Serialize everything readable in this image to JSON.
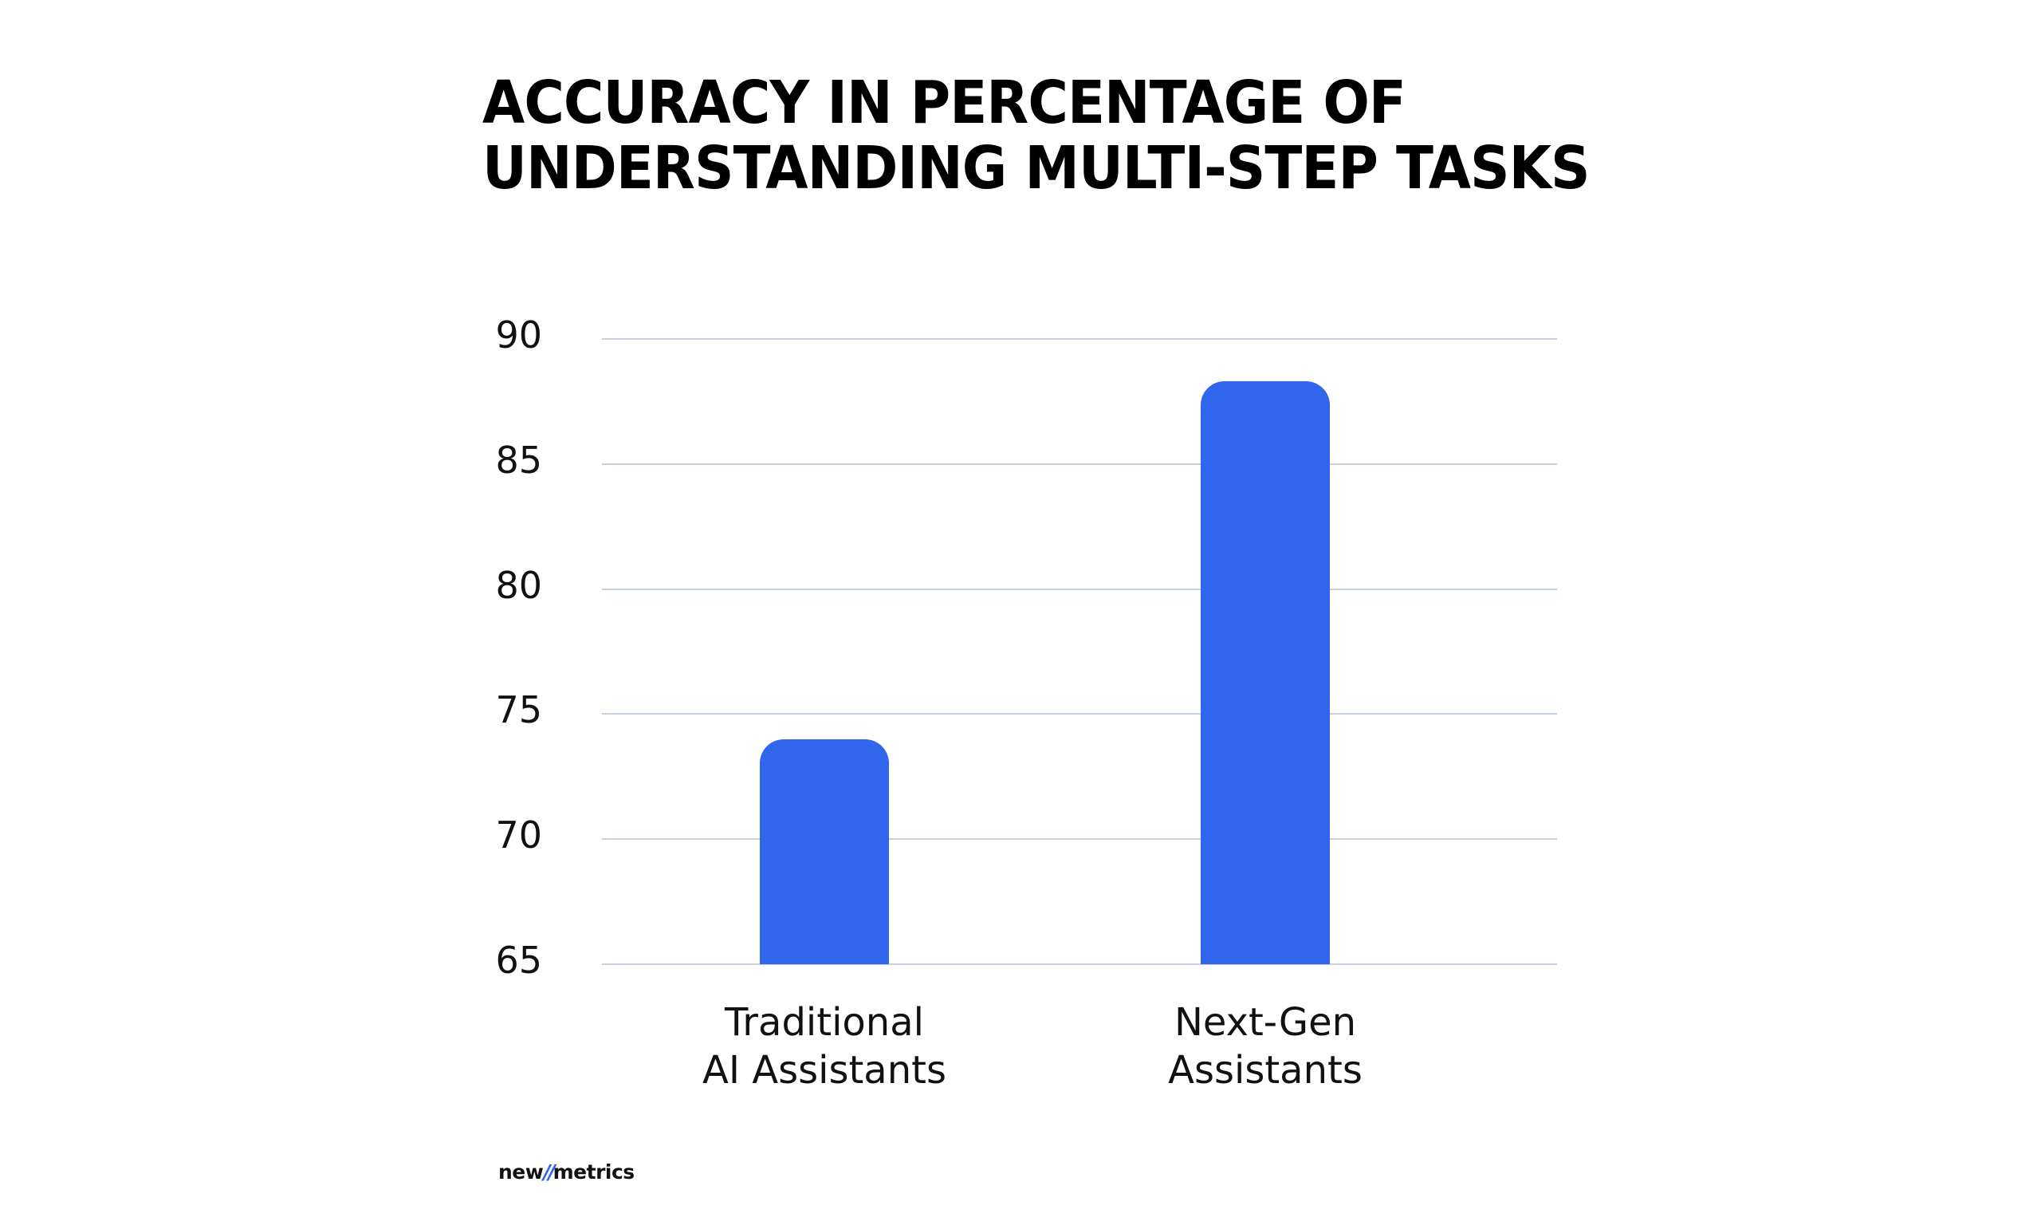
{
  "title": {
    "line1": "ACCURACY IN PERCENTAGE OF",
    "line2": "UNDERSTANDING MULTI-STEP TASKS"
  },
  "logo": {
    "part1": "new",
    "slash": "//",
    "part2": "metrics"
  },
  "colors": {
    "bar": "#2F66EB",
    "grid": "#C5D2DE",
    "text": "#111111",
    "logo_accent": "#2F66EB"
  },
  "chart_data": {
    "type": "bar",
    "title": "ACCURACY IN PERCENTAGE OF UNDERSTANDING MULTI-STEP TASKS",
    "xlabel": "",
    "ylabel": "",
    "categories": [
      "Traditional AI Assistants",
      "Next-Gen Assistants"
    ],
    "category_lines": [
      [
        "Traditional",
        "AI Assistants"
      ],
      [
        "Next-Gen",
        "Assistants"
      ]
    ],
    "values": [
      74,
      88.3
    ],
    "ylim": [
      65,
      90
    ],
    "yticks": [
      90,
      85,
      80,
      75,
      70,
      65
    ],
    "grid": true,
    "legend": null
  }
}
